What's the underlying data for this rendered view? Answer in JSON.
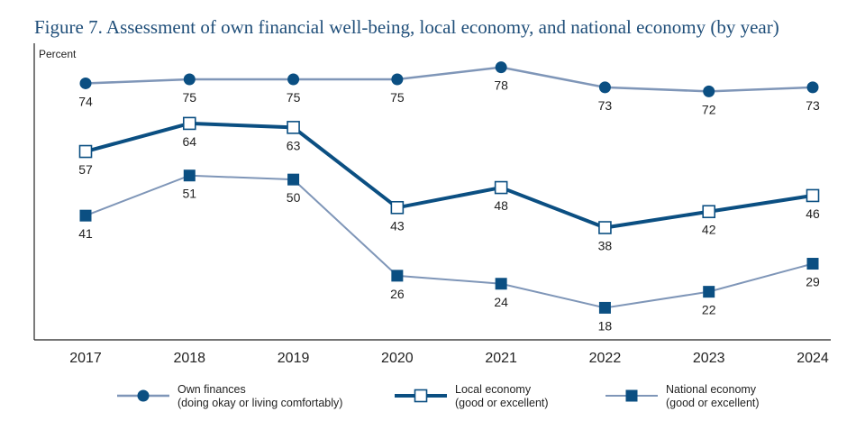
{
  "chart_data": {
    "type": "line",
    "title": "Figure 7. Assessment of own financial well-being, local economy, and national economy (by year)",
    "ylabel": "Percent",
    "xlabel": "",
    "ylim": [
      10,
      84
    ],
    "grid": false,
    "categories": [
      "2017",
      "2018",
      "2019",
      "2020",
      "2021",
      "2022",
      "2023",
      "2024"
    ],
    "series": [
      {
        "name": "Own finances",
        "desc": "(doing okay or living comfortably)",
        "values": [
          74,
          75,
          75,
          75,
          78,
          73,
          72,
          73
        ],
        "color": "#7f96b8",
        "marker": "circle"
      },
      {
        "name": "Local economy",
        "desc": "(good or excellent)",
        "values": [
          57,
          64,
          63,
          43,
          48,
          38,
          42,
          46
        ],
        "color": "#0b4f82",
        "marker": "open-square"
      },
      {
        "name": "National economy",
        "desc": "(good or excellent)",
        "values": [
          41,
          51,
          50,
          26,
          24,
          18,
          22,
          29
        ],
        "color": "#7f96b8",
        "marker": "filled-square"
      }
    ]
  }
}
